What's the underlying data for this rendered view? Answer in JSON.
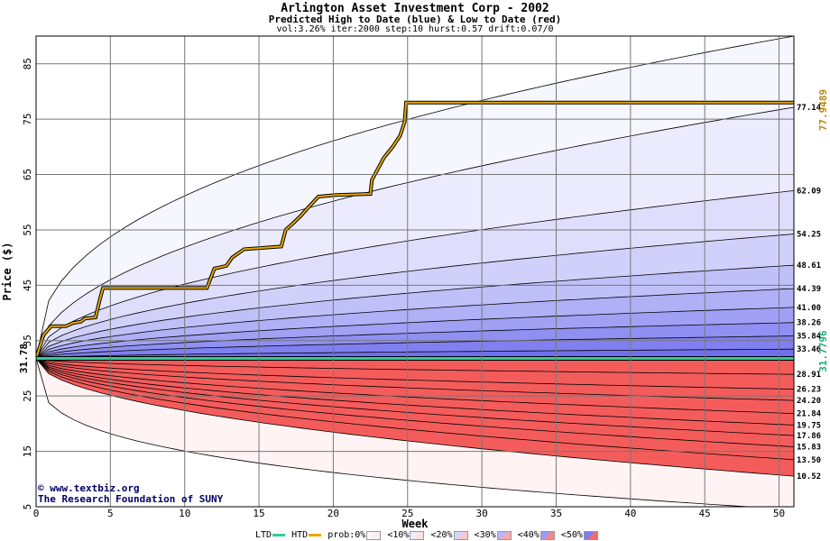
{
  "header": {
    "title": "Arlington Asset Investment Corp - 2002",
    "subtitle": "Predicted High to Date (blue) &  Low to Date (red)",
    "params": "vol:3.26% iter:2000 step:10 hurst:0.57 drift:0.07/0"
  },
  "credits": {
    "url": "www.textbiz.org",
    "org": "The Research Foundation of SUNY"
  },
  "legend": {
    "ltd": "LTD",
    "htd": "HTD",
    "prob": "prob:0%",
    "b1": "<10%",
    "b2": "<20%",
    "b3": "<30%",
    "b4": "<40%",
    "b5": "<50%",
    "ltd_color": "#33cc99",
    "htd_color": "#e6a800",
    "band_colors": [
      "#f8f8ff",
      "#ececfe",
      "#d6d6fc",
      "#b8b8fa",
      "#9a9af7",
      "#7c7cf3"
    ],
    "red_colors": [
      "#fff0f0",
      "#fde0e0",
      "#fbc8c8",
      "#f9a8a8",
      "#f78888",
      "#f56a6a"
    ]
  },
  "chart_data": {
    "type": "area",
    "title": "Arlington Asset Investment Corp - 2002",
    "subtitle": "Predicted High to Date (blue) &  Low to Date (red)",
    "xlabel": "Week",
    "ylabel": "Price ($)",
    "xlim": [
      0,
      51
    ],
    "ylim": [
      5,
      90
    ],
    "x_ticks": [
      0,
      5,
      10,
      15,
      20,
      25,
      30,
      35,
      40,
      45,
      50
    ],
    "y_ticks": [
      5,
      15,
      25,
      35,
      45,
      55,
      65,
      75,
      85
    ],
    "grid": true,
    "start_price": 31.78,
    "start_label": "31.78",
    "ltd_value": 31.7796,
    "ltd_label": "31.7796",
    "htd_final": 77.9489,
    "htd_label": "77.9489",
    "htd_path": [
      [
        0,
        31.78
      ],
      [
        0.5,
        36
      ],
      [
        1,
        37.6
      ],
      [
        2,
        37.6
      ],
      [
        2.5,
        38.2
      ],
      [
        3,
        38.4
      ],
      [
        3.3,
        39
      ],
      [
        4,
        39.2
      ],
      [
        4.3,
        42.5
      ],
      [
        4.5,
        44.5
      ],
      [
        11.5,
        44.5
      ],
      [
        12,
        48
      ],
      [
        12.8,
        48.5
      ],
      [
        13.2,
        50
      ],
      [
        14,
        51.5
      ],
      [
        16.5,
        52
      ],
      [
        16.8,
        55
      ],
      [
        17.3,
        56.2
      ],
      [
        17.8,
        57.5
      ],
      [
        18.3,
        59
      ],
      [
        19,
        61
      ],
      [
        20.2,
        61.3
      ],
      [
        22.5,
        61.5
      ],
      [
        22.6,
        64
      ],
      [
        23,
        66
      ],
      [
        23.4,
        68
      ],
      [
        24,
        70
      ],
      [
        24.5,
        72
      ],
      [
        24.8,
        74.5
      ],
      [
        24.9,
        78
      ],
      [
        51,
        78
      ]
    ],
    "upper_curves": [
      {
        "label": "77.14",
        "final": 77.14
      },
      {
        "label": "62.09",
        "final": 62.09
      },
      {
        "label": "54.25",
        "final": 54.25
      },
      {
        "label": "48.61",
        "final": 48.61
      },
      {
        "label": "44.39",
        "final": 44.39
      },
      {
        "label": "41.00",
        "final": 41.0
      },
      {
        "label": "38.26",
        "final": 38.26
      },
      {
        "label": "35.84",
        "final": 35.84
      },
      {
        "label": "33.46",
        "final": 33.46
      }
    ],
    "lower_curves": [
      {
        "label": "28.91",
        "final": 28.91
      },
      {
        "label": "26.23",
        "final": 26.23
      },
      {
        "label": "24.20",
        "final": 24.2
      },
      {
        "label": "21.84",
        "final": 21.84
      },
      {
        "label": "19.75",
        "final": 19.75
      },
      {
        "label": "17.86",
        "final": 17.86
      },
      {
        "label": "15.83",
        "final": 15.83
      },
      {
        "label": "13.50",
        "final": 13.5
      },
      {
        "label": "10.52",
        "final": 10.52
      }
    ],
    "outer_max_final": 90,
    "outer_min_final": 4.5
  }
}
